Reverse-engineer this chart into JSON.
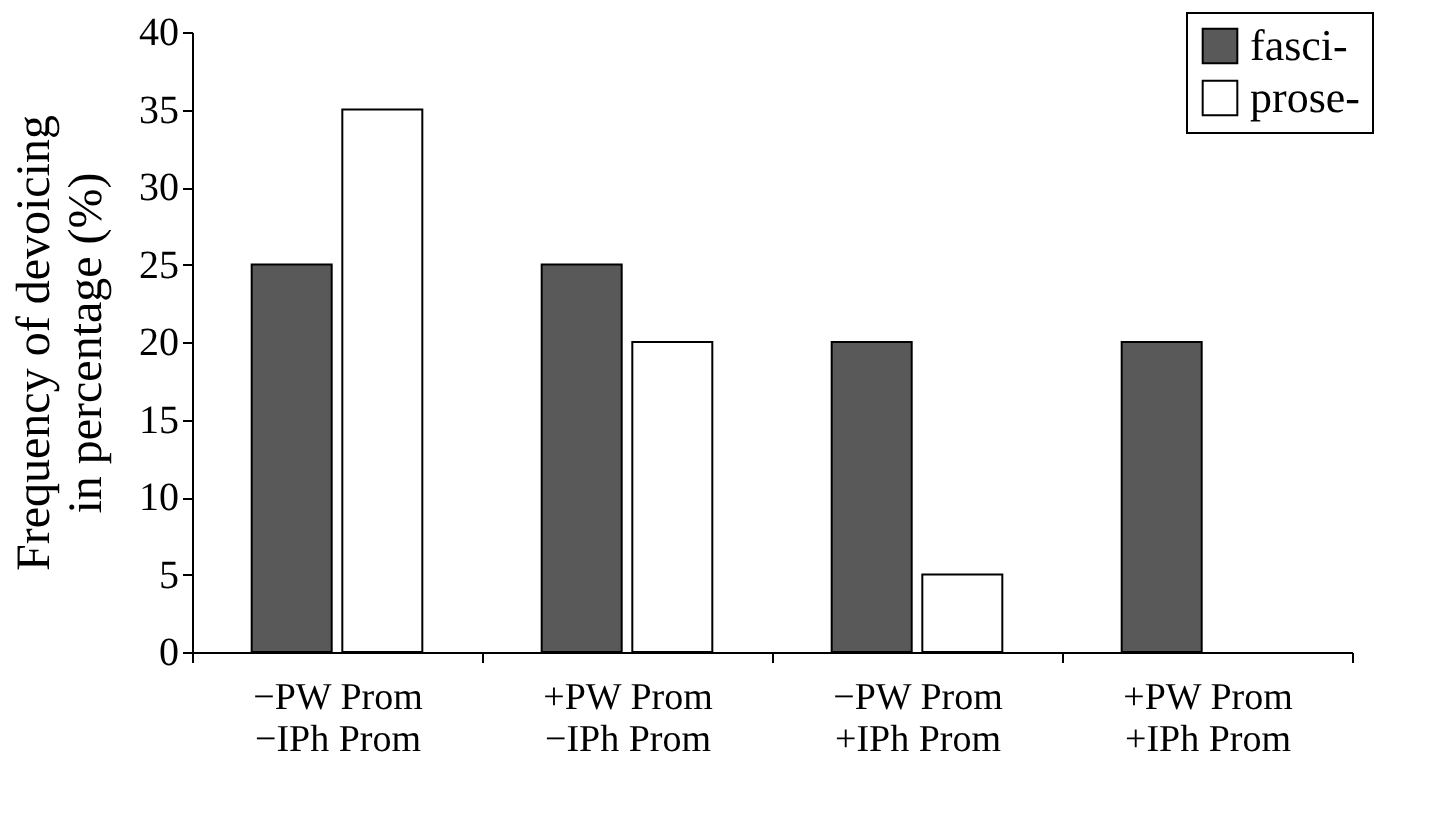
{
  "chart_data": {
    "type": "bar",
    "ylabel": "Frequency of devoicing\nin percentage (%)",
    "categories": [
      "−PW Prom\n−IPh Prom",
      "+PW Prom\n−IPh Prom",
      "−PW Prom\n+IPh Prom",
      "+PW Prom\n+IPh Prom"
    ],
    "series": [
      {
        "name": "fasci-",
        "color": "#595959",
        "values": [
          25,
          25,
          20,
          20
        ]
      },
      {
        "name": "prose-",
        "color": "#ffffff",
        "values": [
          35,
          20,
          5,
          null
        ]
      }
    ],
    "ylim": [
      0,
      40
    ],
    "yticks": [
      0,
      5,
      10,
      15,
      20,
      25,
      30,
      35,
      40
    ],
    "grid": false,
    "legend": "top right"
  }
}
